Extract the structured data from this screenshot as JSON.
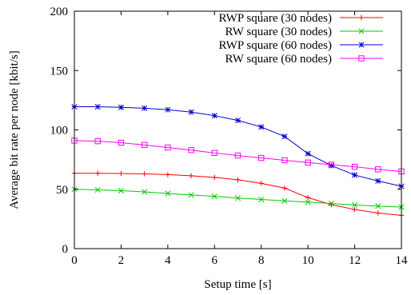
{
  "chart_data": {
    "type": "line",
    "xlabel": "Setup time [s]",
    "ylabel": "Average bit rate per node [kbit/s]",
    "xlim": [
      0,
      14
    ],
    "ylim": [
      0,
      200
    ],
    "xticks": [
      0,
      2,
      4,
      6,
      8,
      10,
      12,
      14
    ],
    "yticks": [
      0,
      50,
      100,
      150,
      200
    ],
    "grid": false,
    "legend_position": "top-right",
    "x": [
      0,
      1,
      2,
      3,
      4,
      5,
      6,
      7,
      8,
      9,
      10,
      11,
      12,
      13,
      14
    ],
    "series": [
      {
        "name": "RWP square (30 nodes)",
        "color": "#ff0000",
        "marker": "plus",
        "values": [
          63.5,
          63.5,
          63.3,
          63,
          62.4,
          61.4,
          60,
          58,
          55,
          51,
          43,
          37,
          33,
          30,
          28
        ]
      },
      {
        "name": "RW square (30 nodes)",
        "color": "#00cc00",
        "marker": "cross",
        "values": [
          50,
          49.5,
          48.8,
          47.8,
          46.5,
          45.2,
          44,
          42.6,
          41.4,
          40.2,
          39.2,
          38,
          36.8,
          35.8,
          35
        ]
      },
      {
        "name": "RWP square (60 nodes)",
        "color": "#0000cc",
        "marker": "star",
        "values": [
          119.5,
          119.5,
          119,
          118.3,
          117,
          115,
          112,
          108,
          102.5,
          94.5,
          80,
          70,
          62,
          57,
          52.5
        ]
      },
      {
        "name": "RW square (60 nodes)",
        "color": "#ff00ff",
        "marker": "square",
        "values": [
          91,
          90.5,
          89.2,
          87.3,
          85.2,
          83,
          80.6,
          78.4,
          76.4,
          74.4,
          72.5,
          70.7,
          68.9,
          66.8,
          65
        ]
      }
    ]
  }
}
